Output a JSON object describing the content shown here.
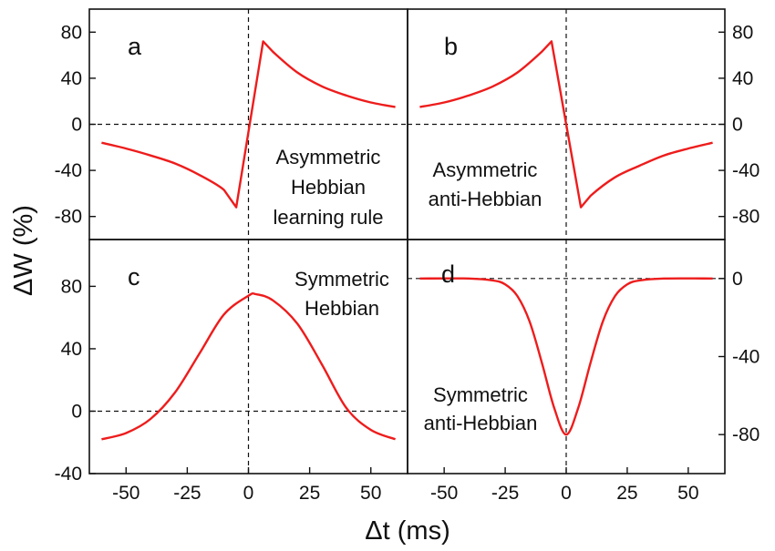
{
  "chart_data": {
    "type": "line",
    "xlabel": "Δt (ms)",
    "ylabel": "ΔW (%)",
    "xlim": [
      -65,
      65
    ],
    "xticks": [
      "-50",
      "-25",
      "0",
      "25",
      "50"
    ],
    "xtick_values": [
      -50,
      -25,
      0,
      25,
      50
    ],
    "line_color": "#ee1c1c",
    "panels": [
      {
        "id": "a",
        "letter": "a",
        "annotation": [
          "Asymmetric",
          "Hebbian",
          "learning rule"
        ],
        "ylim": [
          -100,
          100
        ],
        "yticks": [
          "80",
          "40",
          "0",
          "-40",
          "-80"
        ],
        "ytick_values": [
          80,
          40,
          0,
          -40,
          -80
        ],
        "ytick_side": "left",
        "x": [
          -60,
          -50,
          -40,
          -30,
          -20,
          -10,
          -5,
          6,
          10,
          20,
          30,
          40,
          50,
          60
        ],
        "y": [
          -16,
          -21,
          -27,
          -34,
          -44,
          -57,
          -72,
          72,
          63,
          45,
          33,
          25,
          19,
          15
        ]
      },
      {
        "id": "b",
        "letter": "b",
        "annotation": [
          "Asymmetric",
          "anti-Hebbian"
        ],
        "ylim": [
          -100,
          100
        ],
        "yticks": [
          "80",
          "40",
          "0",
          "-40",
          "-80"
        ],
        "ytick_values": [
          80,
          40,
          0,
          -40,
          -80
        ],
        "ytick_side": "right",
        "x": [
          -60,
          -50,
          -40,
          -30,
          -20,
          -10,
          -6,
          6,
          10,
          20,
          30,
          40,
          50,
          60
        ],
        "y": [
          15,
          19,
          25,
          33,
          45,
          63,
          72,
          -72,
          -62,
          -46,
          -36,
          -27,
          -21,
          -16
        ]
      },
      {
        "id": "c",
        "letter": "c",
        "annotation": [
          "Symmetric",
          "Hebbian"
        ],
        "ylim": [
          -40,
          110
        ],
        "yticks": [
          "80",
          "40",
          "0",
          "-40"
        ],
        "ytick_values": [
          80,
          40,
          0,
          -40
        ],
        "ytick_side": "left",
        "x": [
          -60,
          -50,
          -40,
          -30,
          -20,
          -10,
          0,
          3,
          10,
          20,
          30,
          40,
          50,
          60
        ],
        "y": [
          -18,
          -14,
          -5,
          12,
          37,
          62,
          74,
          75,
          71,
          56,
          30,
          2,
          -12,
          -18
        ]
      },
      {
        "id": "d",
        "letter": "d",
        "annotation": [
          "Symmetric",
          "anti-Hebbian"
        ],
        "ylim": [
          -100,
          20
        ],
        "yticks": [
          "0",
          "-40",
          "-80"
        ],
        "ytick_values": [
          0,
          -40,
          -80
        ],
        "ytick_side": "right",
        "x": [
          -60,
          -40,
          -30,
          -25,
          -20,
          -15,
          -10,
          -5,
          0,
          5,
          10,
          15,
          20,
          25,
          30,
          40,
          60
        ],
        "y": [
          0,
          0,
          -1,
          -3,
          -9,
          -22,
          -43,
          -66,
          -80,
          -66,
          -43,
          -22,
          -9,
          -3,
          -1,
          0,
          0
        ]
      }
    ]
  }
}
